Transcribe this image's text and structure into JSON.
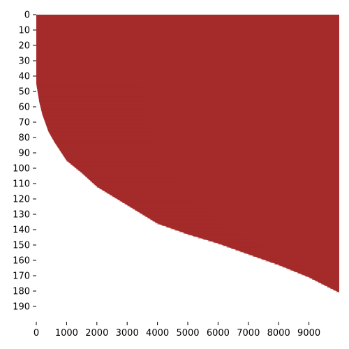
{
  "chart_data": {
    "type": "heatmap",
    "title": "",
    "xlabel": "",
    "ylabel": "",
    "xlim": [
      0,
      10000
    ],
    "ylim": [
      0,
      200
    ],
    "y_inverted": true,
    "xticks": [
      0,
      1000,
      2000,
      3000,
      4000,
      5000,
      6000,
      7000,
      8000,
      9000
    ],
    "yticks": [
      0,
      10,
      20,
      30,
      40,
      50,
      60,
      70,
      80,
      90,
      100,
      110,
      120,
      130,
      140,
      150,
      160,
      170,
      180,
      190
    ],
    "fill_color": "#a52a2a",
    "background_color": "#ffffff",
    "grid": false,
    "legend": "none",
    "boundary": [
      {
        "x": 0,
        "row": 45
      },
      {
        "x": 100,
        "row": 57
      },
      {
        "x": 200,
        "row": 65
      },
      {
        "x": 400,
        "row": 76
      },
      {
        "x": 600,
        "row": 83
      },
      {
        "x": 800,
        "row": 89
      },
      {
        "x": 1000,
        "row": 95
      },
      {
        "x": 1500,
        "row": 103
      },
      {
        "x": 2000,
        "row": 112
      },
      {
        "x": 2500,
        "row": 118
      },
      {
        "x": 3000,
        "row": 124
      },
      {
        "x": 3500,
        "row": 130
      },
      {
        "x": 4000,
        "row": 136
      },
      {
        "x": 5000,
        "row": 143
      },
      {
        "x": 6000,
        "row": 149
      },
      {
        "x": 7000,
        "row": 156
      },
      {
        "x": 8000,
        "row": 163
      },
      {
        "x": 9000,
        "row": 171
      },
      {
        "x": 10000,
        "row": 181
      }
    ]
  }
}
